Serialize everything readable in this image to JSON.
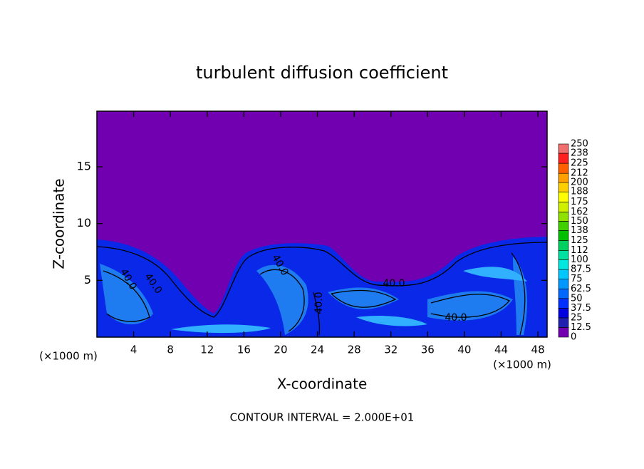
{
  "chart_data": {
    "type": "heatmap",
    "title": "turbulent diffusion coefficient",
    "xlabel": "X-coordinate",
    "ylabel": "Z-coordinate",
    "x_unit": "(×1000 m)",
    "xlim": [
      0,
      49
    ],
    "xticks": [
      4,
      8,
      12,
      16,
      20,
      24,
      28,
      32,
      36,
      40,
      44,
      48
    ],
    "ylim": [
      0,
      19.9
    ],
    "yticks": [
      5,
      10,
      15
    ],
    "contour_labels": [
      "40.0",
      "40.0",
      "40.0",
      "40.0",
      "40.0",
      "40.0"
    ],
    "note": "CONTOUR INTERVAL = 2.000E+01",
    "colorbar": {
      "levels": [
        0,
        12.5,
        25,
        37.5,
        50,
        62.5,
        75,
        87.5,
        100,
        112,
        125,
        138,
        150,
        162,
        175,
        188,
        200,
        212,
        225,
        238,
        250
      ],
      "colors": [
        "#7000b0",
        "#2020b0",
        "#0000e0",
        "#0030ff",
        "#0068ff",
        "#0098ff",
        "#00c8ff",
        "#00e8e0",
        "#00e0a0",
        "#00d060",
        "#00c000",
        "#40d000",
        "#90e000",
        "#d0f000",
        "#ffff00",
        "#ffd000",
        "#ffa000",
        "#ff6000",
        "#ff2020",
        "#f07070"
      ]
    }
  }
}
